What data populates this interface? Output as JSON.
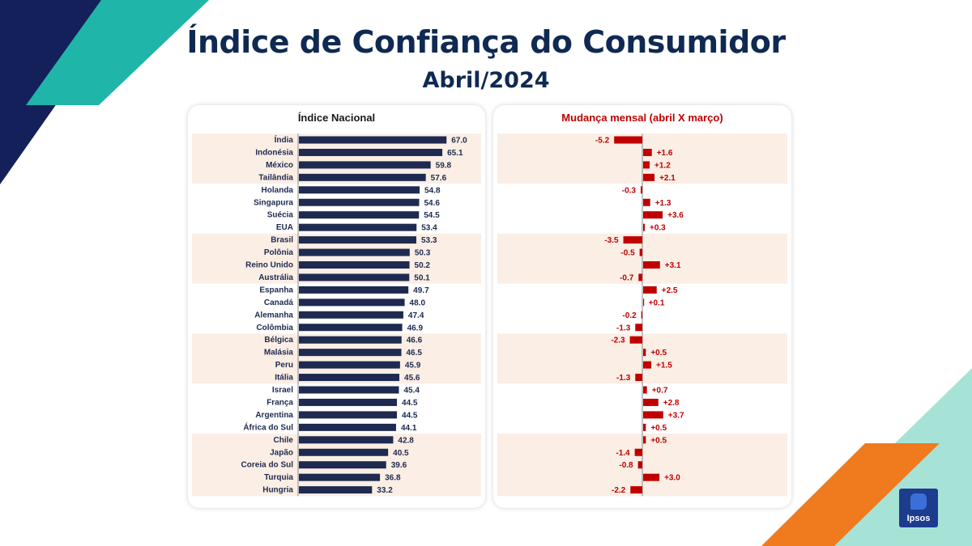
{
  "header": {
    "title": "Índice de Confiança do Consumidor",
    "subtitle": "Abril/2024"
  },
  "colors": {
    "navy": "#0f2a52",
    "teal": "#1fb5a8",
    "orange": "#f07a1e",
    "mint": "#a6e3d6",
    "bar_navy": "#1e2a50",
    "bar_red": "#c00000",
    "band": "#fbeee4"
  },
  "logo": {
    "text": "Ipsos"
  },
  "chart_data": [
    {
      "type": "bar",
      "orientation": "horizontal",
      "title": "Índice Nacional",
      "categories": [
        "Índia",
        "Indonésia",
        "México",
        "Tailândia",
        "Holanda",
        "Singapura",
        "Suécia",
        "EUA",
        "Brasil",
        "Polônia",
        "Reino Unido",
        "Austrália",
        "Espanha",
        "Canadá",
        "Alemanha",
        "Colômbia",
        "Bélgica",
        "Malásia",
        "Peru",
        "Itália",
        "Israel",
        "França",
        "Argentina",
        "África do Sul",
        "Chile",
        "Japão",
        "Coreia do Sul",
        "Turquia",
        "Hungria"
      ],
      "values": [
        67.0,
        65.1,
        59.8,
        57.6,
        54.8,
        54.6,
        54.5,
        53.4,
        53.3,
        50.3,
        50.2,
        50.1,
        49.7,
        48.0,
        47.4,
        46.9,
        46.6,
        46.5,
        45.9,
        45.6,
        45.4,
        44.5,
        44.5,
        44.1,
        42.8,
        40.5,
        39.6,
        36.8,
        33.2
      ],
      "value_labels": [
        "67.0",
        "65.1",
        "59.8",
        "57.6",
        "54.8",
        "54.6",
        "54.5",
        "53.4",
        "53.3",
        "50.3",
        "50.2",
        "50.1",
        "49.7",
        "48.0",
        "47.4",
        "46.9",
        "46.6",
        "46.5",
        "45.9",
        "45.6",
        "45.4",
        "44.5",
        "44.5",
        "44.1",
        "42.8",
        "40.5",
        "39.6",
        "36.8",
        "33.2"
      ],
      "xlim": [
        0,
        72
      ]
    },
    {
      "type": "bar",
      "orientation": "horizontal",
      "title": "Mudança mensal (abril X março)",
      "categories": [
        "Índia",
        "Indonésia",
        "México",
        "Tailândia",
        "Holanda",
        "Singapura",
        "Suécia",
        "EUA",
        "Brasil",
        "Polônia",
        "Reino Unido",
        "Austrália",
        "Espanha",
        "Canadá",
        "Alemanha",
        "Colômbia",
        "Bélgica",
        "Malásia",
        "Peru",
        "Itália",
        "Israel",
        "França",
        "Argentina",
        "África do Sul",
        "Chile",
        "Japão",
        "Coreia do Sul",
        "Turquia",
        "Hungria"
      ],
      "values": [
        -5.2,
        1.6,
        1.2,
        2.1,
        -0.3,
        1.3,
        3.6,
        0.3,
        -3.5,
        -0.5,
        3.1,
        -0.7,
        2.5,
        0.1,
        -0.2,
        -1.3,
        -2.3,
        0.5,
        1.5,
        -1.3,
        0.7,
        2.8,
        3.7,
        0.5,
        0.5,
        -1.4,
        -0.8,
        3.0,
        -2.2
      ],
      "value_labels": [
        "-5.2",
        "+1.6",
        "+1.2",
        "+2.1",
        "-0.3",
        "+1.3",
        "+3.6",
        "+0.3",
        "-3.5",
        "-0.5",
        "+3.1",
        "-0.7",
        "+2.5",
        "+0.1",
        "-0.2",
        "-1.3",
        "-2.3",
        "+0.5",
        "+1.5",
        "-1.3",
        "+0.7",
        "+2.8",
        "+3.7",
        "+0.5",
        "+0.5",
        "-1.4",
        "-0.8",
        "+3.0",
        "-2.2"
      ],
      "xlim": [
        -6,
        6
      ]
    }
  ]
}
